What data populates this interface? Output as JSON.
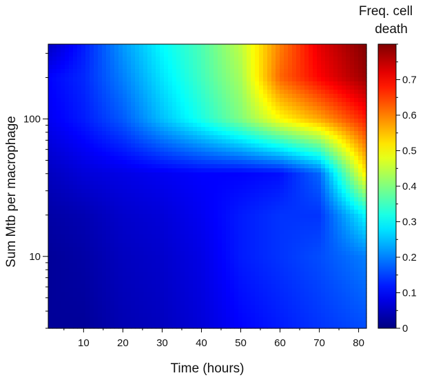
{
  "chart_data": {
    "type": "heatmap",
    "title": "",
    "xlabel": "Time (hours)",
    "ylabel": "Sum Mtb per macrophage",
    "xlim": [
      1,
      82
    ],
    "ylim": [
      3,
      350
    ],
    "yscale": "log",
    "x_ticks": [
      10,
      20,
      30,
      40,
      50,
      60,
      70,
      80
    ],
    "x_tick_labels": [
      "10",
      "20",
      "30",
      "40",
      "50",
      "60",
      "70",
      "80"
    ],
    "y_ticks": [
      10,
      100
    ],
    "y_tick_labels": [
      "10",
      "100"
    ],
    "colorbar": {
      "title_lines": [
        "Freq. cell",
        "death"
      ],
      "range": [
        0,
        0.8
      ],
      "ticks": [
        0,
        0.1,
        0.2,
        0.3,
        0.4,
        0.5,
        0.6,
        0.7
      ],
      "tick_labels": [
        "0",
        "0.1",
        "0.2",
        "0.3",
        "0.4",
        "0.5",
        "0.6",
        "0.7"
      ],
      "colormap": "jet"
    },
    "x_grid": [
      1,
      10,
      20,
      30,
      40,
      50,
      60,
      70,
      82
    ],
    "y_grid": [
      3,
      10,
      20,
      40,
      100,
      200,
      350
    ],
    "z": [
      [
        0.02,
        0.02,
        0.04,
        0.05,
        0.07,
        0.1,
        0.12,
        0.14,
        0.16
      ],
      [
        0.02,
        0.03,
        0.05,
        0.06,
        0.08,
        0.12,
        0.14,
        0.16,
        0.2
      ],
      [
        0.03,
        0.04,
        0.06,
        0.07,
        0.09,
        0.12,
        0.14,
        0.14,
        0.3
      ],
      [
        0.05,
        0.07,
        0.08,
        0.09,
        0.1,
        0.1,
        0.11,
        0.18,
        0.52
      ],
      [
        0.09,
        0.12,
        0.17,
        0.25,
        0.32,
        0.4,
        0.5,
        0.57,
        0.68
      ],
      [
        0.1,
        0.13,
        0.2,
        0.28,
        0.35,
        0.43,
        0.62,
        0.7,
        0.78
      ],
      [
        0.05,
        0.12,
        0.22,
        0.3,
        0.36,
        0.45,
        0.6,
        0.72,
        0.8
      ]
    ]
  }
}
